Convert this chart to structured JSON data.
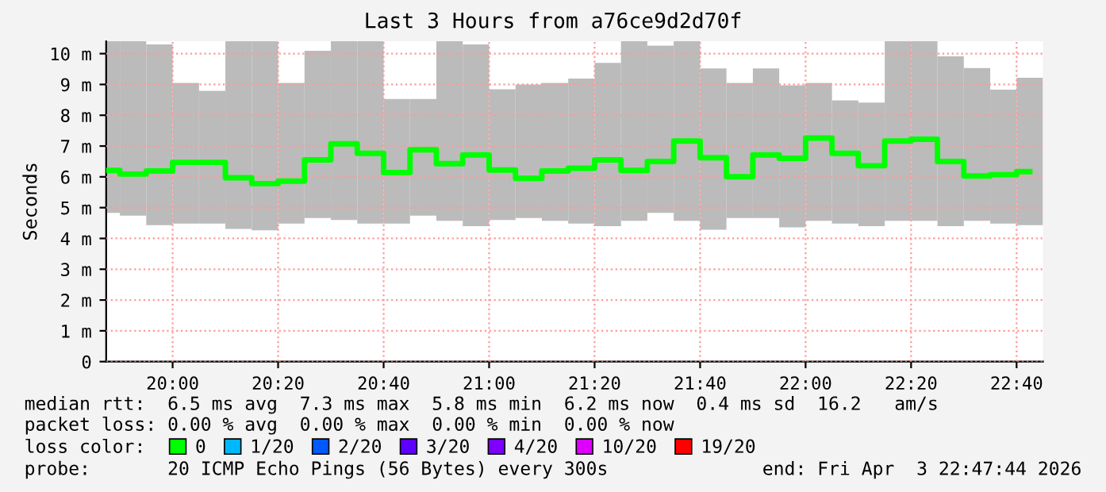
{
  "chart_data": {
    "type": "bar",
    "title": "Last 3 Hours from a76ce9d2d70f",
    "ylabel": "Seconds",
    "x": [
      19.7917,
      19.875,
      19.9583,
      20.0417,
      20.125,
      20.2083,
      20.2917,
      20.375,
      20.4583,
      20.5417,
      20.625,
      20.7083,
      20.7917,
      20.875,
      20.9583,
      21.0417,
      21.125,
      21.2083,
      21.2917,
      21.375,
      21.4583,
      21.5417,
      21.625,
      21.7083,
      21.7917,
      21.875,
      21.9583,
      22.0417,
      22.125,
      22.2083,
      22.2917,
      22.375,
      22.4583,
      22.5417,
      22.625,
      22.7083
    ],
    "series": [
      {
        "color": "#bbbbbb",
        "base": [
          4.83,
          4.74,
          4.43,
          4.48,
          4.48,
          4.31,
          4.26,
          4.48,
          4.66,
          4.6,
          4.48,
          4.48,
          4.74,
          4.57,
          4.4,
          4.6,
          4.66,
          4.57,
          4.48,
          4.4,
          4.57,
          4.83,
          4.57,
          4.28,
          4.66,
          4.66,
          4.36,
          4.57,
          4.48,
          4.4,
          4.57,
          4.57,
          4.4,
          4.57,
          4.48,
          4.43
        ],
        "values": [
          5.57,
          5.66,
          5.87,
          4.57,
          4.31,
          6.09,
          6.14,
          4.57,
          5.43,
          5.8,
          5.92,
          4.05,
          3.79,
          5.83,
          5.9,
          4.24,
          4.34,
          4.48,
          4.71,
          5.3,
          5.83,
          5.43,
          5.83,
          5.24,
          4.39,
          4.86,
          4.61,
          4.48,
          4.0,
          4.01,
          5.83,
          5.83,
          5.51,
          4.96,
          4.35,
          4.79
        ]
      },
      {
        "type": "step",
        "name": "0",
        "color": "#00ff00",
        "values": [
          6.21,
          6.09,
          6.19,
          6.47,
          6.47,
          5.97,
          5.78,
          5.86,
          6.55,
          7.07,
          6.76,
          6.14,
          6.88,
          6.43,
          6.71,
          6.22,
          5.95,
          6.19,
          6.28,
          6.55,
          6.21,
          6.5,
          7.16,
          6.62,
          6.0,
          6.71,
          6.6,
          7.26,
          6.76,
          6.36,
          7.16,
          7.22,
          6.5,
          6.03,
          6.07,
          6.17
        ]
      },
      {
        "type": "step",
        "name": "1/20",
        "color": "#00b8ff",
        "values": [
          null,
          null,
          null,
          null,
          null,
          null,
          null,
          null,
          null,
          null,
          null,
          null,
          null,
          null,
          null,
          null,
          null,
          null,
          null,
          null,
          null,
          null,
          null,
          null,
          null,
          null,
          null,
          null,
          null,
          null,
          null,
          null,
          null,
          null,
          null,
          null
        ]
      },
      {
        "type": "step",
        "name": "2/20",
        "color": "#0059ff",
        "values": [
          null,
          null,
          null,
          null,
          null,
          null,
          null,
          null,
          null,
          null,
          null,
          null,
          null,
          null,
          null,
          null,
          null,
          null,
          null,
          null,
          null,
          null,
          null,
          null,
          null,
          null,
          null,
          null,
          null,
          null,
          null,
          null,
          null,
          null,
          null,
          null
        ]
      },
      {
        "type": "step",
        "name": "3/20",
        "color": "#5e00ff",
        "values": [
          null,
          null,
          null,
          null,
          null,
          null,
          null,
          null,
          null,
          null,
          null,
          null,
          null,
          null,
          null,
          null,
          null,
          null,
          null,
          null,
          null,
          null,
          null,
          null,
          null,
          null,
          null,
          null,
          null,
          null,
          null,
          null,
          null,
          null,
          null,
          null
        ]
      },
      {
        "type": "step",
        "name": "4/20",
        "color": "#7e00ff",
        "values": [
          null,
          null,
          null,
          null,
          null,
          null,
          null,
          null,
          null,
          null,
          null,
          null,
          null,
          null,
          null,
          null,
          null,
          null,
          null,
          null,
          null,
          null,
          null,
          null,
          null,
          null,
          null,
          null,
          null,
          null,
          null,
          null,
          null,
          null,
          null,
          null
        ]
      },
      {
        "type": "step",
        "name": "10/20",
        "color": "#dd00ff",
        "values": [
          null,
          null,
          null,
          null,
          null,
          null,
          null,
          null,
          null,
          null,
          null,
          null,
          null,
          null,
          null,
          null,
          null,
          null,
          null,
          null,
          null,
          null,
          null,
          null,
          null,
          null,
          null,
          null,
          null,
          null,
          null,
          null,
          null,
          null,
          null,
          null
        ]
      },
      {
        "type": "step",
        "name": "19/20",
        "color": "#ff0000",
        "values": [
          null,
          null,
          null,
          null,
          null,
          null,
          null,
          null,
          null,
          null,
          null,
          null,
          null,
          null,
          null,
          null,
          null,
          null,
          null,
          null,
          null,
          null,
          null,
          null,
          null,
          null,
          null,
          null,
          null,
          null,
          null,
          null,
          null,
          null,
          null,
          null
        ]
      }
    ],
    "xlim": [
      19.79,
      22.75
    ],
    "xticks": [
      {
        "value": 20,
        "label": "20:00"
      },
      {
        "value": 20.3333,
        "label": "20:20"
      },
      {
        "value": 20.6667,
        "label": "20:40"
      },
      {
        "value": 21,
        "label": "21:00"
      },
      {
        "value": 21.3333,
        "label": "21:20"
      },
      {
        "value": 21.6667,
        "label": "21:40"
      },
      {
        "value": 22,
        "label": "22:00"
      },
      {
        "value": 22.3333,
        "label": "22:20"
      },
      {
        "value": 22.6667,
        "label": "22:40"
      }
    ],
    "ylim": [
      0,
      10.4
    ],
    "yticks": [
      0,
      {
        "value": 1,
        "label": "1 m"
      },
      {
        "value": 2,
        "label": "2 m"
      },
      {
        "value": 3,
        "label": "3 m"
      },
      {
        "value": 4,
        "label": "4 m"
      },
      {
        "value": 5,
        "label": "5 m"
      },
      {
        "value": 6,
        "label": "6 m"
      },
      {
        "value": 7,
        "label": "7 m"
      },
      {
        "value": 8,
        "label": "8 m"
      },
      {
        "value": 9,
        "label": "9 m"
      },
      {
        "value": 10,
        "label": "10 m"
      }
    ],
    "grid": true,
    "legend": "bottom",
    "legend_title": "loss color:",
    "annotations": [
      "median rtt:  6.5 ms avg  7.3 ms max  5.8 ms min  6.2 ms now  0.4 ms sd  16.2   am/s",
      "packet loss: 0.00 % avg  0.00 % max  0.00 % min  0.00 % now",
      "probe:       20 ICMP Echo Pings (56 Bytes) every 300s",
      "end: Fri Apr  3 22:47:44 2026"
    ]
  }
}
